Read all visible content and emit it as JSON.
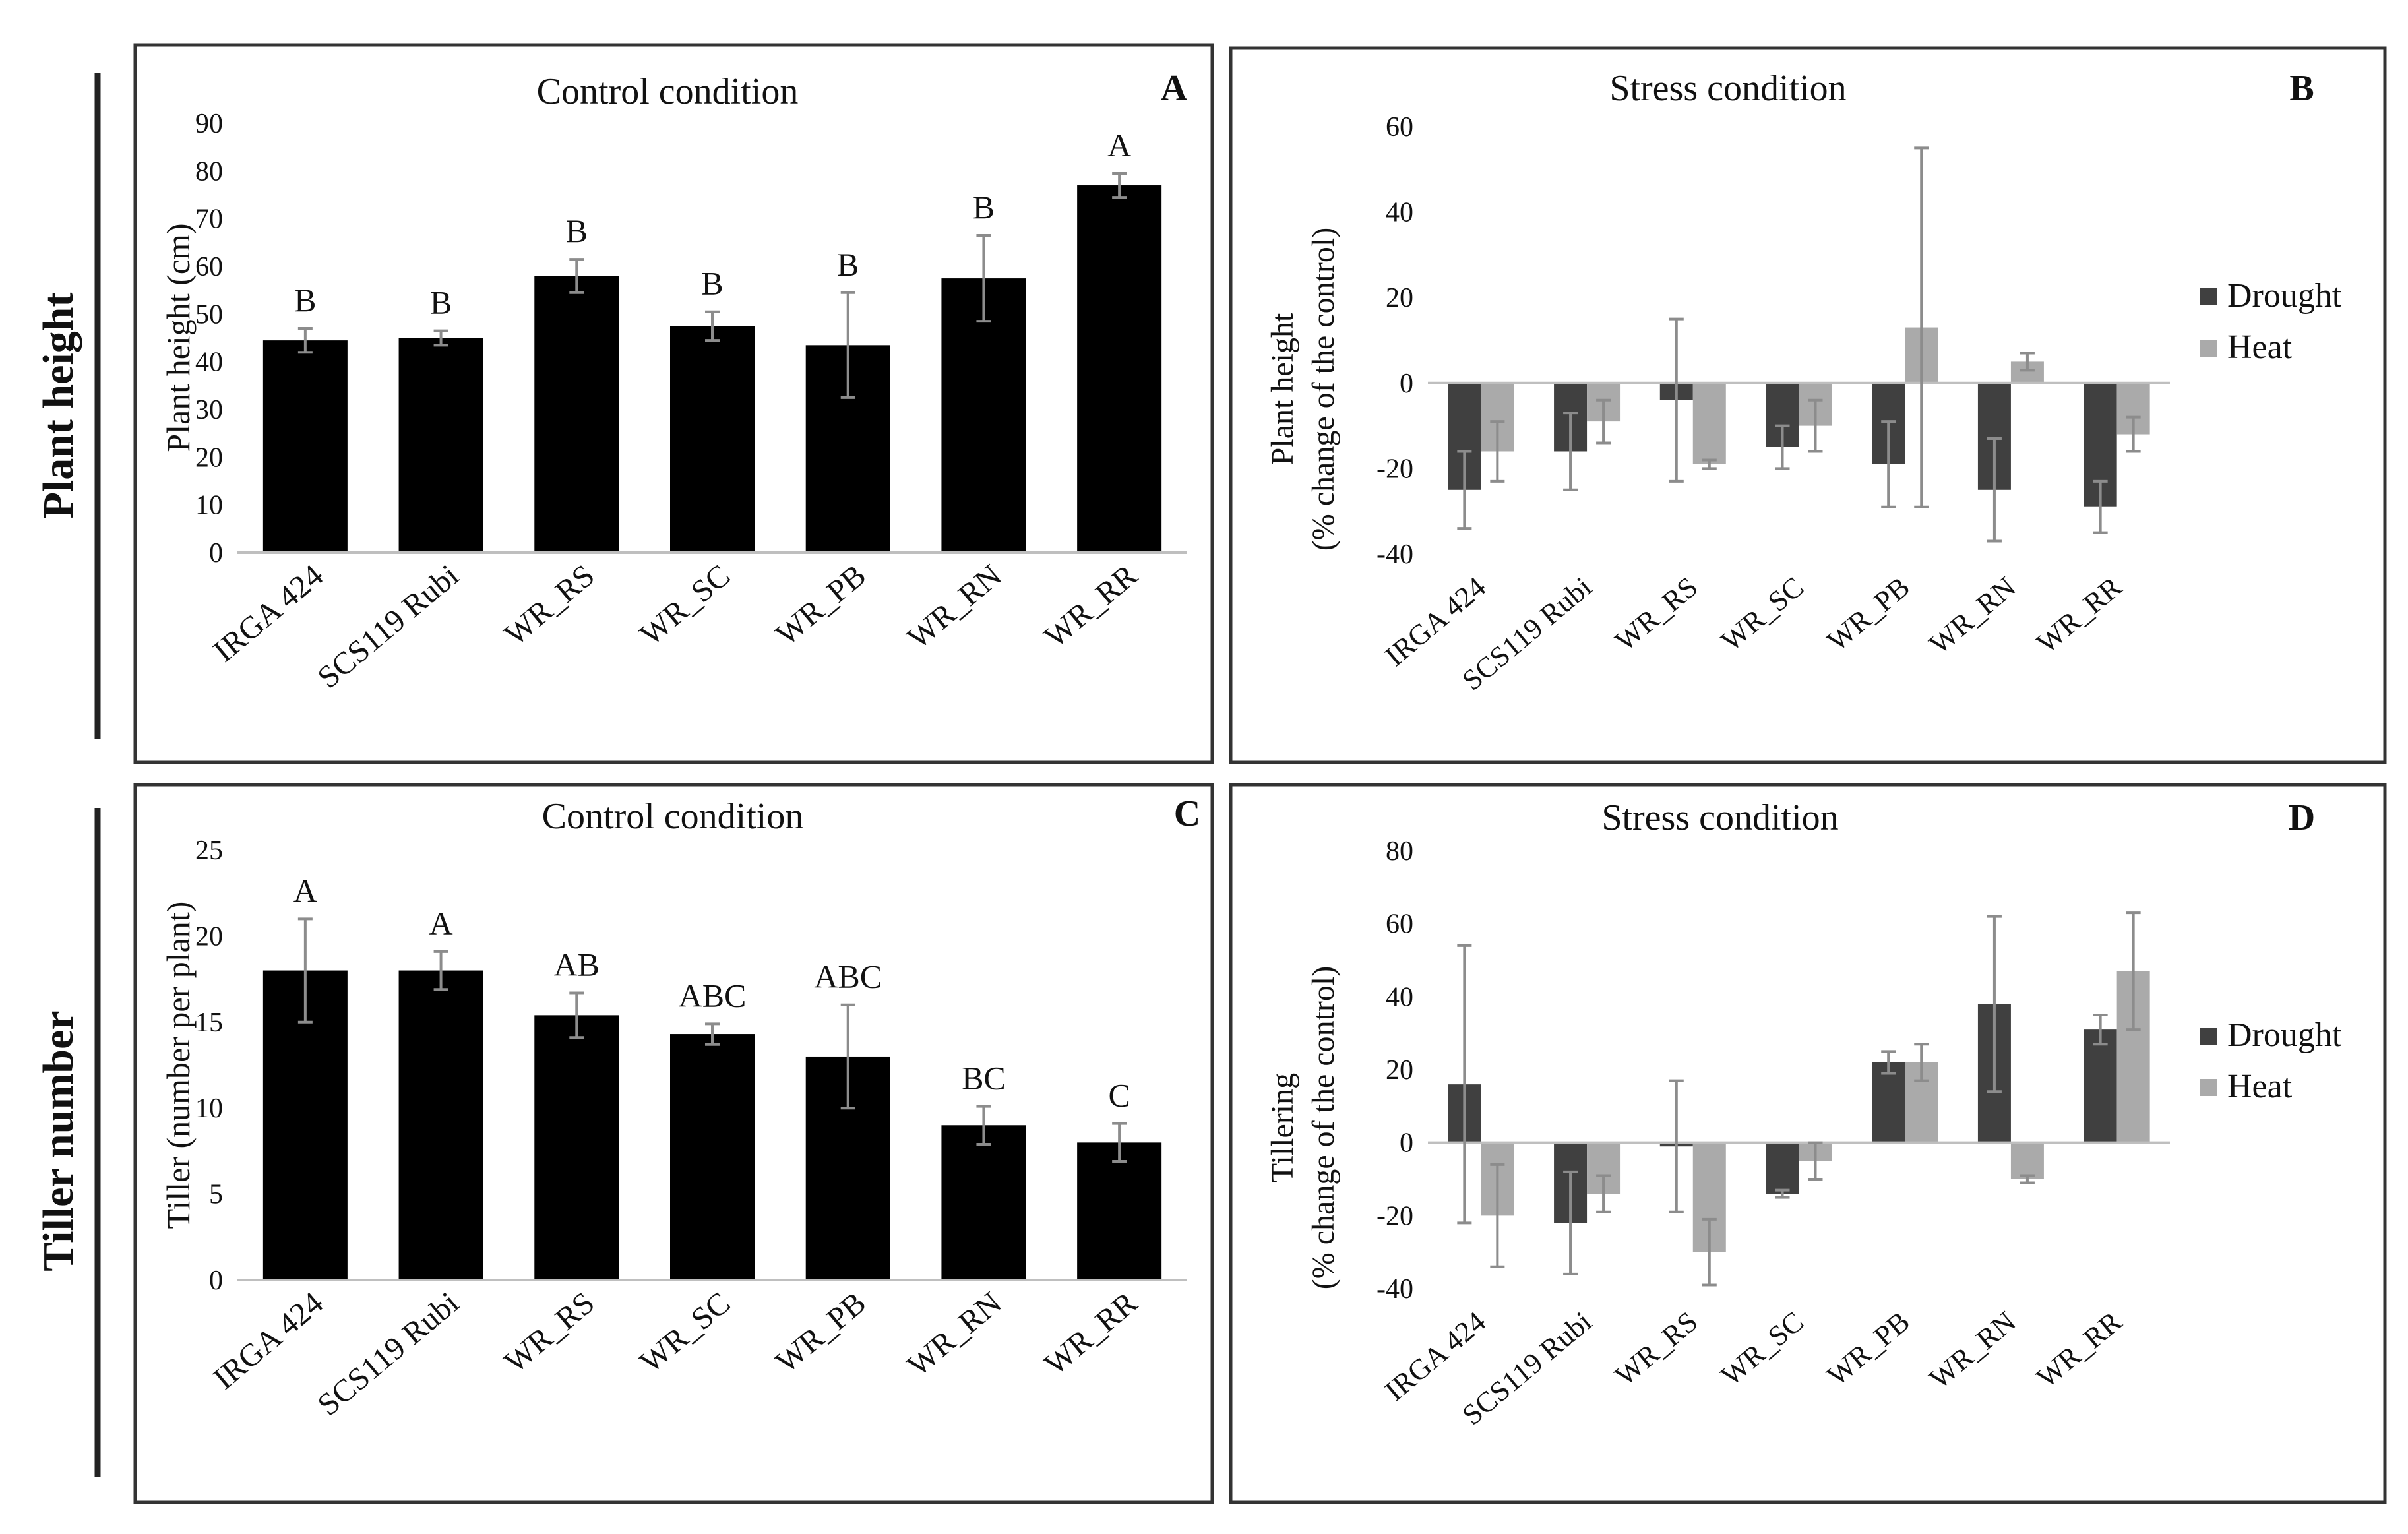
{
  "row_labels": [
    "Plant height",
    "Tiller number"
  ],
  "colors": {
    "control_bar": "#000000",
    "drought": "#404040",
    "heat": "#aaaaaa",
    "error_bar": "#8c8c8c",
    "frame": "#333333",
    "axis": "#bfbfbf"
  },
  "chart_data": [
    {
      "type": "bar",
      "panel": "A",
      "title": "Control condition",
      "ylabel": "Plant height (cm)",
      "xlabel": "",
      "ylim": [
        0,
        90
      ],
      "yticks": [
        0,
        10,
        20,
        30,
        40,
        50,
        60,
        70,
        80,
        90
      ],
      "categories": [
        "IRGA 424",
        "SCS119 Rubi",
        "WR_RS",
        "WR_SC",
        "WR_PB",
        "WR_RN",
        "WR_RR"
      ],
      "series": [
        {
          "name": "Control",
          "values": [
            44.5,
            45,
            58,
            47.5,
            43.5,
            57.5,
            77
          ],
          "errors": [
            2.5,
            1.5,
            3.5,
            3,
            11,
            9,
            2.5
          ]
        }
      ],
      "letters": [
        "B",
        "B",
        "B",
        "B",
        "B",
        "B",
        "A"
      ]
    },
    {
      "type": "bar",
      "panel": "B",
      "title": "Stress condition",
      "ylabel": [
        "Plant height",
        "(% change of the control)"
      ],
      "xlabel": "",
      "ylim": [
        -40,
        60
      ],
      "yticks": [
        -40,
        -20,
        0,
        20,
        40,
        60
      ],
      "categories": [
        "IRGA 424",
        "SCS119 Rubi",
        "WR_RS",
        "WR_SC",
        "WR_PB",
        "WR_RN",
        "WR_RR"
      ],
      "series": [
        {
          "name": "Drought",
          "values": [
            -25,
            -16,
            -4,
            -15,
            -19,
            -25,
            -29
          ],
          "errors": [
            9,
            9,
            19,
            5,
            10,
            12,
            6
          ]
        },
        {
          "name": "Heat",
          "values": [
            -16,
            -9,
            -19,
            -10,
            13,
            5,
            -12
          ],
          "errors": [
            7,
            5,
            1,
            6,
            42,
            2,
            4
          ]
        }
      ],
      "legend": [
        "Drought",
        "Heat"
      ],
      "legend_position": "right"
    },
    {
      "type": "bar",
      "panel": "C",
      "title": "Control condition",
      "ylabel": "Tiller (number per plant)",
      "xlabel": "",
      "ylim": [
        0,
        25
      ],
      "yticks": [
        0,
        5,
        10,
        15,
        20,
        25
      ],
      "categories": [
        "IRGA 424",
        "SCS119 Rubi",
        "WR_RS",
        "WR_SC",
        "WR_PB",
        "WR_RN",
        "WR_RR"
      ],
      "series": [
        {
          "name": "Control",
          "values": [
            18,
            18,
            15.4,
            14.3,
            13,
            9,
            8
          ],
          "errors": [
            3,
            1.1,
            1.3,
            0.6,
            3,
            1.1,
            1.1
          ]
        }
      ],
      "letters": [
        "A",
        "A",
        "AB",
        "ABC",
        "ABC",
        "BC",
        "C"
      ]
    },
    {
      "type": "bar",
      "panel": "D",
      "title": "Stress condition",
      "ylabel": [
        "Tillering",
        "(% change of the control)"
      ],
      "xlabel": "",
      "ylim": [
        -40,
        80
      ],
      "yticks": [
        -40,
        -20,
        0,
        20,
        40,
        60,
        80
      ],
      "categories": [
        "IRGA 424",
        "SCS119 Rubi",
        "WR_RS",
        "WR_SC",
        "WR_PB",
        "WR_RN",
        "WR_RR"
      ],
      "series": [
        {
          "name": "Drought",
          "values": [
            16,
            -22,
            -1,
            -14,
            22,
            38,
            31
          ],
          "errors": [
            38,
            14,
            18,
            1,
            3,
            24,
            4
          ]
        },
        {
          "name": "Heat",
          "values": [
            -20,
            -14,
            -30,
            -5,
            22,
            -10,
            47
          ],
          "errors": [
            14,
            5,
            9,
            5,
            5,
            1,
            16
          ]
        }
      ],
      "legend": [
        "Drought",
        "Heat"
      ],
      "legend_position": "right"
    }
  ]
}
